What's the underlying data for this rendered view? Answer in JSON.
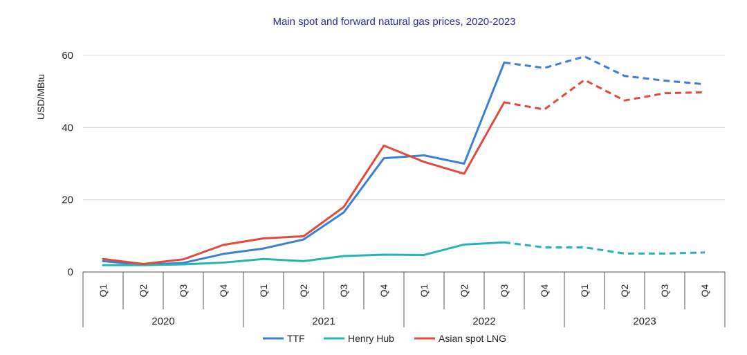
{
  "chart_data": {
    "type": "line",
    "title": "Main spot and forward natural gas prices, 2020-2023",
    "ylabel": "USD/MBtu",
    "xlabel": "",
    "ylim": [
      0,
      60
    ],
    "yticks": [
      0,
      20,
      40,
      60
    ],
    "grid": true,
    "legend_position": "bottom",
    "quarters": [
      "Q1",
      "Q2",
      "Q3",
      "Q4",
      "Q1",
      "Q2",
      "Q3",
      "Q4",
      "Q1",
      "Q2",
      "Q3",
      "Q4",
      "Q1",
      "Q2",
      "Q3",
      "Q4"
    ],
    "years": [
      {
        "label": "2020",
        "start": 0,
        "end": 3
      },
      {
        "label": "2021",
        "start": 4,
        "end": 7
      },
      {
        "label": "2022",
        "start": 8,
        "end": 11
      },
      {
        "label": "2023",
        "start": 12,
        "end": 15
      }
    ],
    "forecast_start_index": 10,
    "series": [
      {
        "name": "TTF",
        "color": "#3a7fd5",
        "values": [
          3.0,
          2.0,
          2.5,
          5.0,
          6.5,
          9.0,
          16.5,
          31.5,
          32.3,
          30.0,
          58.0,
          56.5,
          59.7,
          54.3,
          53.0,
          52.0
        ]
      },
      {
        "name": "Henry Hub",
        "color": "#26b3b3",
        "values": [
          1.9,
          1.9,
          2.1,
          2.6,
          3.6,
          3.0,
          4.4,
          4.8,
          4.7,
          7.6,
          8.2,
          6.8,
          6.8,
          5.1,
          5.1,
          5.4
        ]
      },
      {
        "name": "Asian spot LNG",
        "color": "#e04a3c",
        "values": [
          3.6,
          2.2,
          3.5,
          7.5,
          9.3,
          9.9,
          18.0,
          35.0,
          30.5,
          27.2,
          47.0,
          45.0,
          53.2,
          47.5,
          49.5,
          49.8
        ]
      }
    ]
  }
}
